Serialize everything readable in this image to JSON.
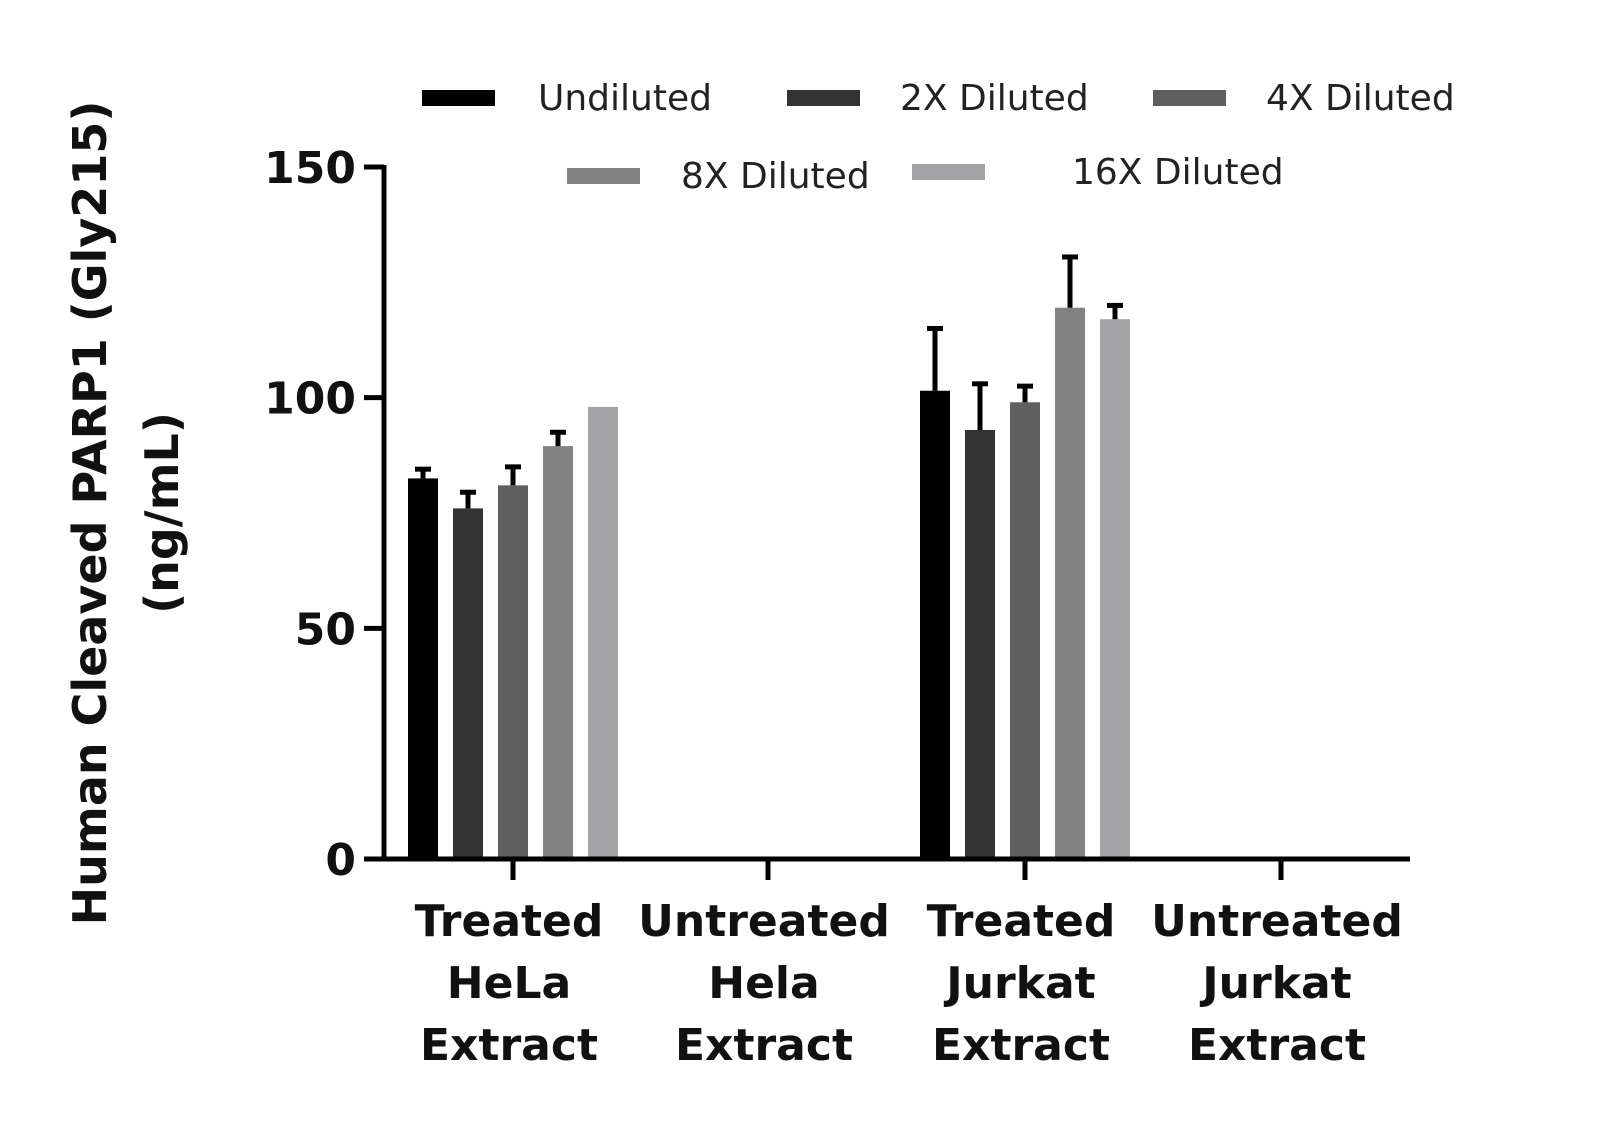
{
  "chart_data": {
    "type": "bar",
    "categories": [
      [
        "Treated",
        "HeLa",
        "Extract"
      ],
      [
        "Untreated",
        "Hela",
        "Extract"
      ],
      [
        "Treated",
        "Jurkat",
        "Extract"
      ],
      [
        "Untreated",
        "Jurkat",
        "Extract"
      ]
    ],
    "series": [
      {
        "name": "Undiluted",
        "color": "#000000",
        "values": [
          82.5,
          0,
          101.5,
          0
        ],
        "errors": [
          2,
          0,
          13.5,
          0
        ]
      },
      {
        "name": "2X Diluted",
        "color": "#333333",
        "values": [
          76,
          0,
          93,
          0
        ],
        "errors": [
          3.5,
          0,
          10,
          0
        ]
      },
      {
        "name": "4X Diluted",
        "color": "#5f5f5f",
        "values": [
          81,
          0,
          99,
          0
        ],
        "errors": [
          4,
          0,
          3.5,
          0
        ]
      },
      {
        "name": "8X Diluted",
        "color": "#828282",
        "values": [
          89.5,
          0,
          119.5,
          0
        ],
        "errors": [
          3,
          0,
          11,
          0
        ]
      },
      {
        "name": "16X Diluted",
        "color": "#a4a4a6",
        "values": [
          98,
          0,
          117,
          0
        ],
        "errors": [
          0,
          0,
          3,
          0
        ]
      }
    ],
    "title": "",
    "xlabel": "",
    "ylabel": [
      "Human Cleaved PARP1 (Gly215)",
      "(ng/mL)"
    ],
    "ylim": [
      0,
      150
    ],
    "yticks": [
      0,
      50,
      100,
      150
    ],
    "grid": false,
    "legend_placement": "top"
  }
}
